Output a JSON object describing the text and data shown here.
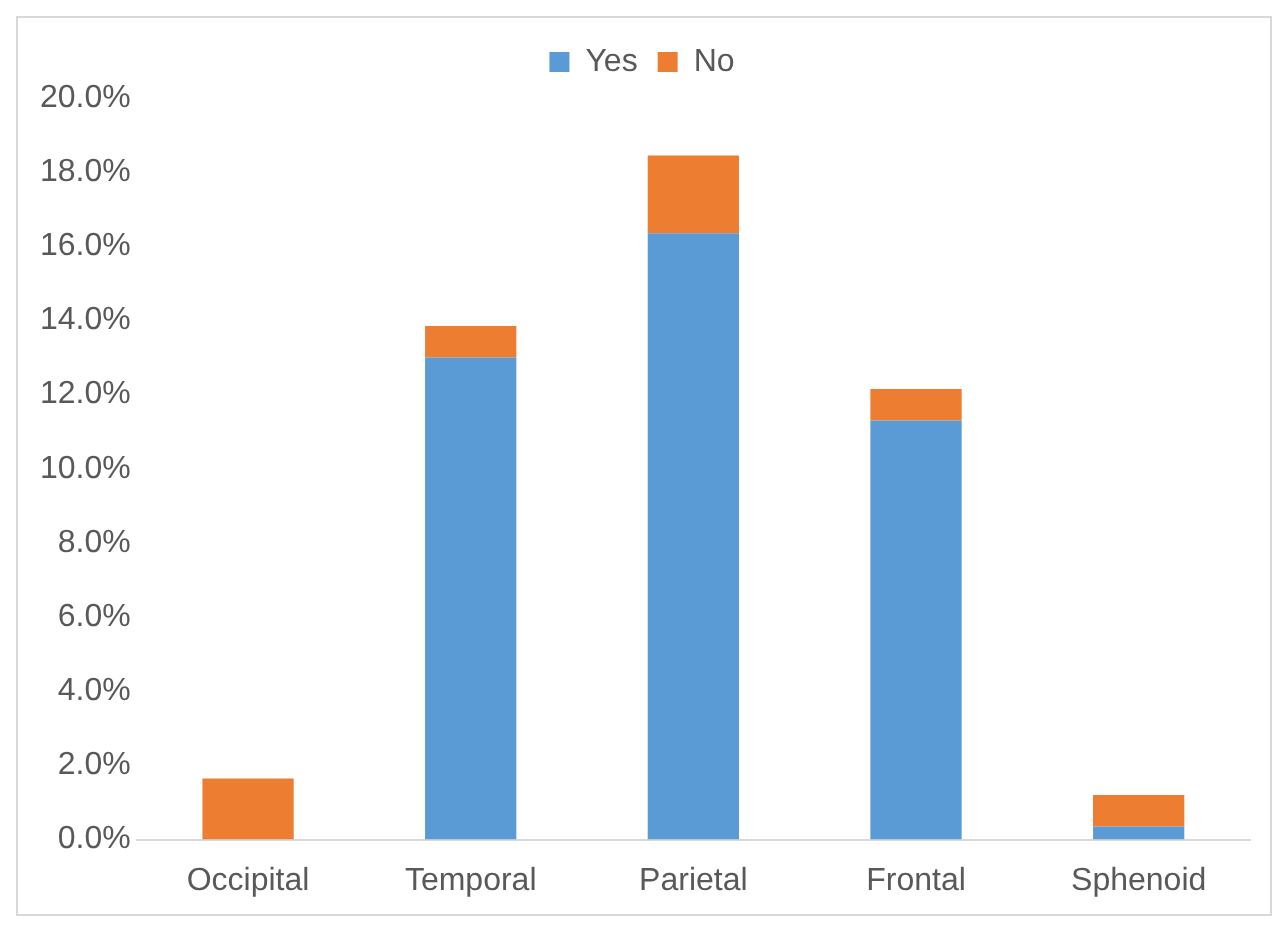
{
  "chart_data": {
    "type": "bar",
    "stacked": true,
    "categories": [
      "Occipital",
      "Temporal",
      "Parietal",
      "Frontal",
      "Sphenoid"
    ],
    "series": [
      {
        "name": "Yes",
        "color": "#5b9bd5",
        "values": [
          0,
          13.0,
          16.35,
          11.3,
          0.35
        ]
      },
      {
        "name": "No",
        "color": "#ed7d31",
        "values": [
          1.65,
          0.85,
          2.1,
          0.85,
          0.85
        ]
      }
    ],
    "ylim": [
      0,
      20
    ],
    "yticks": [
      {
        "value": 0,
        "label": "0.0%"
      },
      {
        "value": 2,
        "label": "2.0%"
      },
      {
        "value": 4,
        "label": "4.0%"
      },
      {
        "value": 6,
        "label": "6.0%"
      },
      {
        "value": 8,
        "label": "8.0%"
      },
      {
        "value": 10,
        "label": "10.0%"
      },
      {
        "value": 12,
        "label": "12.0%"
      },
      {
        "value": 14,
        "label": "14.0%"
      },
      {
        "value": 16,
        "label": "16.0%"
      },
      {
        "value": 18,
        "label": "18.0%"
      },
      {
        "value": 20,
        "label": "20.0%"
      }
    ],
    "grid": false,
    "legend": "top"
  }
}
